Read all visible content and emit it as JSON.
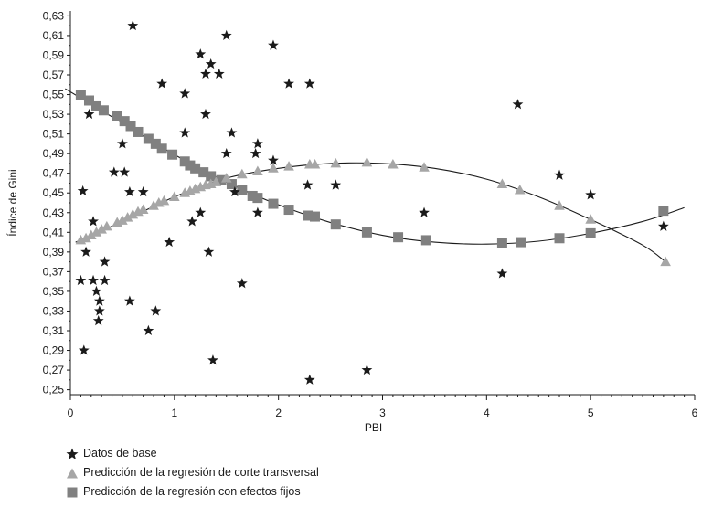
{
  "chart_data": {
    "type": "scatter",
    "title": "",
    "xlabel": "PBI",
    "ylabel": "Índice de Gini",
    "xlim": [
      0,
      6
    ],
    "ylim": [
      0.245,
      0.635
    ],
    "x_ticks": [
      "0",
      "1",
      "2",
      "3",
      "4",
      "5",
      "6"
    ],
    "y_ticks": [
      "0,63",
      "0,61",
      "0,59",
      "0,57",
      "0,55",
      "0,53",
      "0,51",
      "0,49",
      "0,47",
      "0,45",
      "0,43",
      "0,41",
      "0,39",
      "0,37",
      "0,35",
      "0,33",
      "0,31",
      "0,29",
      "0,27",
      "0,25"
    ],
    "grid": false,
    "legend_position": "bottom-left",
    "series": [
      {
        "name": "Datos de base",
        "marker": "star",
        "color": "#1a1a1a",
        "points": [
          [
            0.6,
            0.62
          ],
          [
            1.25,
            0.591
          ],
          [
            1.5,
            0.61
          ],
          [
            1.95,
            0.6
          ],
          [
            1.35,
            0.581
          ],
          [
            1.3,
            0.571
          ],
          [
            1.43,
            0.571
          ],
          [
            2.1,
            0.561
          ],
          [
            2.3,
            0.561
          ],
          [
            0.88,
            0.561
          ],
          [
            1.1,
            0.551
          ],
          [
            4.3,
            0.54
          ],
          [
            0.18,
            0.53
          ],
          [
            1.3,
            0.53
          ],
          [
            1.1,
            0.511
          ],
          [
            1.55,
            0.511
          ],
          [
            0.5,
            0.5
          ],
          [
            1.8,
            0.5
          ],
          [
            1.78,
            0.49
          ],
          [
            1.5,
            0.49
          ],
          [
            1.95,
            0.483
          ],
          [
            0.42,
            0.471
          ],
          [
            0.52,
            0.471
          ],
          [
            4.7,
            0.468
          ],
          [
            0.12,
            0.452
          ],
          [
            0.57,
            0.451
          ],
          [
            0.7,
            0.451
          ],
          [
            1.58,
            0.451
          ],
          [
            2.28,
            0.458
          ],
          [
            2.55,
            0.458
          ],
          [
            5.0,
            0.448
          ],
          [
            1.25,
            0.43
          ],
          [
            1.8,
            0.43
          ],
          [
            3.4,
            0.43
          ],
          [
            0.22,
            0.421
          ],
          [
            1.17,
            0.421
          ],
          [
            5.7,
            0.416
          ],
          [
            0.95,
            0.4
          ],
          [
            0.15,
            0.39
          ],
          [
            1.33,
            0.39
          ],
          [
            0.33,
            0.38
          ],
          [
            4.15,
            0.368
          ],
          [
            0.1,
            0.361
          ],
          [
            0.22,
            0.361
          ],
          [
            0.33,
            0.361
          ],
          [
            1.65,
            0.358
          ],
          [
            0.25,
            0.35
          ],
          [
            0.28,
            0.34
          ],
          [
            0.57,
            0.34
          ],
          [
            0.28,
            0.33
          ],
          [
            0.82,
            0.33
          ],
          [
            0.27,
            0.32
          ],
          [
            0.75,
            0.31
          ],
          [
            0.13,
            0.29
          ],
          [
            1.37,
            0.28
          ],
          [
            2.85,
            0.27
          ],
          [
            2.3,
            0.26
          ]
        ]
      },
      {
        "name": "Predicción de la regresión de corte transversal",
        "marker": "triangle",
        "color": "#a6a6a6",
        "points": [
          [
            0.1,
            0.402
          ],
          [
            0.15,
            0.404
          ],
          [
            0.2,
            0.407
          ],
          [
            0.25,
            0.41
          ],
          [
            0.3,
            0.413
          ],
          [
            0.35,
            0.416
          ],
          [
            0.45,
            0.42
          ],
          [
            0.5,
            0.422
          ],
          [
            0.55,
            0.425
          ],
          [
            0.6,
            0.428
          ],
          [
            0.65,
            0.431
          ],
          [
            0.7,
            0.433
          ],
          [
            0.8,
            0.437
          ],
          [
            0.85,
            0.44
          ],
          [
            0.9,
            0.442
          ],
          [
            1.0,
            0.446
          ],
          [
            1.1,
            0.45
          ],
          [
            1.15,
            0.452
          ],
          [
            1.2,
            0.454
          ],
          [
            1.25,
            0.456
          ],
          [
            1.3,
            0.458
          ],
          [
            1.35,
            0.459
          ],
          [
            1.4,
            0.461
          ],
          [
            1.5,
            0.465
          ],
          [
            1.65,
            0.469
          ],
          [
            1.8,
            0.472
          ],
          [
            1.95,
            0.475
          ],
          [
            2.1,
            0.477
          ],
          [
            2.3,
            0.479
          ],
          [
            2.35,
            0.479
          ],
          [
            2.55,
            0.48
          ],
          [
            2.85,
            0.481
          ],
          [
            3.1,
            0.479
          ],
          [
            3.4,
            0.476
          ],
          [
            4.15,
            0.459
          ],
          [
            4.32,
            0.453
          ],
          [
            4.7,
            0.437
          ],
          [
            5.0,
            0.423
          ],
          [
            5.72,
            0.38
          ]
        ],
        "trend": [
          [
            0.05,
            0.4
          ],
          [
            0.5,
            0.421
          ],
          [
            1.0,
            0.446
          ],
          [
            1.5,
            0.465
          ],
          [
            2.0,
            0.475
          ],
          [
            2.5,
            0.48
          ],
          [
            3.0,
            0.48
          ],
          [
            3.5,
            0.475
          ],
          [
            4.0,
            0.464
          ],
          [
            4.5,
            0.446
          ],
          [
            5.0,
            0.423
          ],
          [
            5.5,
            0.397
          ],
          [
            5.72,
            0.38
          ]
        ]
      },
      {
        "name": "Predicción de la regresión con efectos fijos",
        "marker": "square",
        "color": "#808080",
        "points": [
          [
            0.1,
            0.55
          ],
          [
            0.18,
            0.544
          ],
          [
            0.25,
            0.538
          ],
          [
            0.32,
            0.534
          ],
          [
            0.45,
            0.528
          ],
          [
            0.52,
            0.523
          ],
          [
            0.58,
            0.518
          ],
          [
            0.65,
            0.512
          ],
          [
            0.75,
            0.505
          ],
          [
            0.82,
            0.5
          ],
          [
            0.88,
            0.495
          ],
          [
            0.98,
            0.489
          ],
          [
            1.1,
            0.482
          ],
          [
            1.15,
            0.478
          ],
          [
            1.2,
            0.475
          ],
          [
            1.28,
            0.471
          ],
          [
            1.35,
            0.467
          ],
          [
            1.45,
            0.463
          ],
          [
            1.55,
            0.459
          ],
          [
            1.65,
            0.453
          ],
          [
            1.75,
            0.447
          ],
          [
            1.8,
            0.445
          ],
          [
            1.95,
            0.439
          ],
          [
            2.1,
            0.433
          ],
          [
            2.28,
            0.427
          ],
          [
            2.35,
            0.426
          ],
          [
            2.55,
            0.418
          ],
          [
            2.85,
            0.41
          ],
          [
            3.15,
            0.405
          ],
          [
            3.42,
            0.402
          ],
          [
            4.15,
            0.399
          ],
          [
            4.33,
            0.4
          ],
          [
            4.7,
            0.404
          ],
          [
            5.0,
            0.409
          ],
          [
            5.7,
            0.432
          ]
        ],
        "trend": [
          [
            -0.05,
            0.556
          ],
          [
            0.5,
            0.521
          ],
          [
            1.0,
            0.489
          ],
          [
            1.5,
            0.461
          ],
          [
            2.0,
            0.438
          ],
          [
            2.5,
            0.42
          ],
          [
            3.0,
            0.407
          ],
          [
            3.5,
            0.4
          ],
          [
            4.0,
            0.398
          ],
          [
            4.5,
            0.401
          ],
          [
            5.0,
            0.409
          ],
          [
            5.5,
            0.421
          ],
          [
            5.9,
            0.435
          ]
        ]
      }
    ]
  }
}
